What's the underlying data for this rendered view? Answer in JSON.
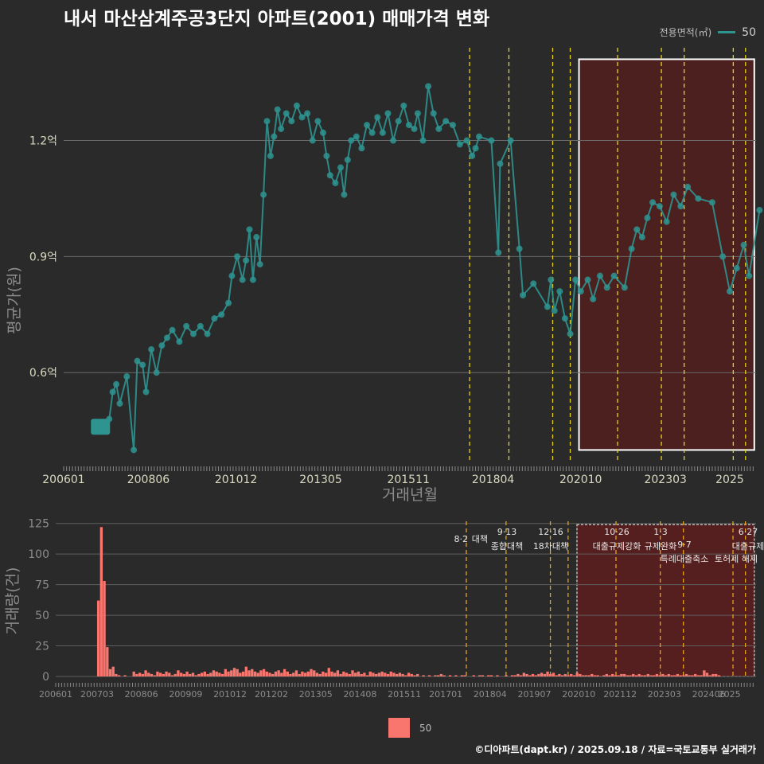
{
  "title": "내서 마산삼계주공3단지 아파트(2001) 매매가격 변화",
  "legend_top": {
    "title": "전용면적(㎡)",
    "value": "50"
  },
  "legend_bottom": {
    "value": "50"
  },
  "caption": "©디아파트(dapt.kr) / 2025.09.18 / 자료=국토교통부 실거래가",
  "colors": {
    "background": "#2a2a2a",
    "price_line": "#2e9490",
    "volume_bar": "#f8766d",
    "policy_line": "#e8d21a",
    "highlight_fill": "#5a1e1e"
  },
  "chart_data": [
    {
      "type": "line",
      "name": "price",
      "x_axis": {
        "label": "거래년월",
        "ticks": [
          "200601",
          "200806",
          "201012",
          "201305",
          "201511",
          "201804",
          "202010",
          "202303",
          "2025"
        ]
      },
      "y_axis": {
        "label": "평균가(원)",
        "ticks": [
          "0.6억",
          "0.9억",
          "1.2억"
        ],
        "ylim": [
          0.37,
          1.45
        ]
      },
      "grid": true,
      "policy_dates": [
        2017.58,
        2018.7,
        2019.95,
        2020.45,
        2021.8,
        2023.05,
        2023.7,
        2025.1,
        2025.45
      ],
      "highlight_range": [
        2020.7,
        2025.7
      ],
      "series": [
        {
          "name": "50",
          "points": [
            [
              2007.05,
              0.46
            ],
            [
              2007.15,
              0.46
            ],
            [
              2007.3,
              0.48
            ],
            [
              2007.4,
              0.55
            ],
            [
              2007.5,
              0.57
            ],
            [
              2007.6,
              0.52
            ],
            [
              2007.8,
              0.59
            ],
            [
              2008.0,
              0.4
            ],
            [
              2008.1,
              0.63
            ],
            [
              2008.25,
              0.62
            ],
            [
              2008.35,
              0.55
            ],
            [
              2008.5,
              0.66
            ],
            [
              2008.65,
              0.6
            ],
            [
              2008.8,
              0.67
            ],
            [
              2008.95,
              0.69
            ],
            [
              2009.1,
              0.71
            ],
            [
              2009.3,
              0.68
            ],
            [
              2009.5,
              0.72
            ],
            [
              2009.7,
              0.7
            ],
            [
              2009.9,
              0.72
            ],
            [
              2010.1,
              0.7
            ],
            [
              2010.3,
              0.74
            ],
            [
              2010.5,
              0.75
            ],
            [
              2010.7,
              0.78
            ],
            [
              2010.8,
              0.85
            ],
            [
              2010.95,
              0.9
            ],
            [
              2011.1,
              0.84
            ],
            [
              2011.2,
              0.89
            ],
            [
              2011.3,
              0.97
            ],
            [
              2011.4,
              0.84
            ],
            [
              2011.5,
              0.95
            ],
            [
              2011.6,
              0.88
            ],
            [
              2011.7,
              1.06
            ],
            [
              2011.8,
              1.25
            ],
            [
              2011.9,
              1.16
            ],
            [
              2012.0,
              1.21
            ],
            [
              2012.1,
              1.28
            ],
            [
              2012.2,
              1.23
            ],
            [
              2012.35,
              1.27
            ],
            [
              2012.5,
              1.25
            ],
            [
              2012.65,
              1.29
            ],
            [
              2012.8,
              1.26
            ],
            [
              2012.95,
              1.27
            ],
            [
              2013.1,
              1.2
            ],
            [
              2013.25,
              1.25
            ],
            [
              2013.4,
              1.22
            ],
            [
              2013.5,
              1.16
            ],
            [
              2013.6,
              1.11
            ],
            [
              2013.75,
              1.09
            ],
            [
              2013.9,
              1.13
            ],
            [
              2014.0,
              1.06
            ],
            [
              2014.1,
              1.15
            ],
            [
              2014.2,
              1.2
            ],
            [
              2014.35,
              1.21
            ],
            [
              2014.5,
              1.18
            ],
            [
              2014.65,
              1.24
            ],
            [
              2014.8,
              1.22
            ],
            [
              2014.95,
              1.26
            ],
            [
              2015.1,
              1.22
            ],
            [
              2015.25,
              1.27
            ],
            [
              2015.4,
              1.2
            ],
            [
              2015.55,
              1.25
            ],
            [
              2015.7,
              1.29
            ],
            [
              2015.85,
              1.24
            ],
            [
              2016.0,
              1.23
            ],
            [
              2016.1,
              1.27
            ],
            [
              2016.25,
              1.2
            ],
            [
              2016.4,
              1.34
            ],
            [
              2016.55,
              1.27
            ],
            [
              2016.7,
              1.23
            ],
            [
              2016.9,
              1.25
            ],
            [
              2017.1,
              1.24
            ],
            [
              2017.3,
              1.19
            ],
            [
              2017.5,
              1.2
            ],
            [
              2017.65,
              1.16
            ],
            [
              2017.75,
              1.18
            ],
            [
              2017.85,
              1.21
            ],
            [
              2018.2,
              1.2
            ],
            [
              2018.4,
              0.91
            ],
            [
              2018.45,
              1.14
            ],
            [
              2018.75,
              1.2
            ],
            [
              2019.0,
              0.92
            ],
            [
              2019.1,
              0.8
            ],
            [
              2019.4,
              0.83
            ],
            [
              2019.8,
              0.77
            ],
            [
              2019.9,
              0.84
            ],
            [
              2020.0,
              0.76
            ],
            [
              2020.15,
              0.81
            ],
            [
              2020.3,
              0.74
            ],
            [
              2020.45,
              0.7
            ],
            [
              2020.6,
              0.84
            ],
            [
              2020.75,
              0.81
            ],
            [
              2020.95,
              0.84
            ],
            [
              2021.1,
              0.79
            ],
            [
              2021.3,
              0.85
            ],
            [
              2021.5,
              0.82
            ],
            [
              2021.7,
              0.85
            ],
            [
              2022.0,
              0.82
            ],
            [
              2022.2,
              0.92
            ],
            [
              2022.35,
              0.97
            ],
            [
              2022.5,
              0.95
            ],
            [
              2022.65,
              1.0
            ],
            [
              2022.8,
              1.04
            ],
            [
              2023.0,
              1.03
            ],
            [
              2023.2,
              0.99
            ],
            [
              2023.4,
              1.06
            ],
            [
              2023.6,
              1.03
            ],
            [
              2023.8,
              1.08
            ],
            [
              2024.1,
              1.05
            ],
            [
              2024.5,
              1.04
            ],
            [
              2024.8,
              0.9
            ],
            [
              2025.0,
              0.81
            ],
            [
              2025.2,
              0.87
            ],
            [
              2025.4,
              0.93
            ],
            [
              2025.55,
              0.85
            ],
            [
              2025.85,
              1.02
            ]
          ]
        }
      ]
    },
    {
      "type": "bar",
      "name": "volume",
      "x_axis": {
        "ticks": [
          "200601",
          "200703",
          "200806",
          "200909",
          "201012",
          "201202",
          "201305",
          "201408",
          "201511",
          "201701",
          "201804",
          "201907",
          "202010",
          "202112",
          "202303",
          "202406",
          "2025"
        ]
      },
      "y_axis": {
        "label": "거래량(건)",
        "ticks": [
          "0",
          "25",
          "50",
          "75",
          "100",
          "125"
        ],
        "ylim": [
          0,
          130
        ]
      },
      "grid": true,
      "annotations": [
        {
          "date": "8·2",
          "label": "대책"
        },
        {
          "date": "9·13",
          "label": "종합대책"
        },
        {
          "date": "12·16",
          "label": "18차대책"
        },
        {
          "date": "10·26",
          "label": "대출규제강화"
        },
        {
          "date": "1·3",
          "label": "규제완화"
        },
        {
          "date": "9·7",
          "label": "특례대출축소"
        },
        {
          "date": "",
          "label": "토허제 해제"
        },
        {
          "date": "6·27",
          "label": "대출규제"
        }
      ],
      "series": [
        {
          "name": "50",
          "monthly_values": [
            0,
            0,
            0,
            0,
            0,
            0,
            0,
            0,
            0,
            0,
            0,
            0,
            0,
            0,
            62,
            122,
            78,
            24,
            6,
            8,
            2,
            1,
            0,
            1,
            0,
            0,
            4,
            2,
            3,
            2,
            5,
            3,
            2,
            1,
            4,
            3,
            2,
            4,
            3,
            1,
            2,
            5,
            3,
            2,
            4,
            2,
            3,
            1,
            2,
            3,
            4,
            2,
            3,
            5,
            4,
            3,
            2,
            6,
            4,
            5,
            7,
            6,
            3,
            4,
            8,
            5,
            6,
            4,
            3,
            5,
            6,
            4,
            3,
            2,
            4,
            5,
            3,
            6,
            4,
            2,
            3,
            5,
            2,
            4,
            3,
            4,
            6,
            5,
            3,
            2,
            4,
            3,
            7,
            4,
            3,
            5,
            2,
            4,
            3,
            2,
            5,
            3,
            4,
            2,
            3,
            1,
            4,
            3,
            2,
            3,
            4,
            3,
            2,
            4,
            3,
            2,
            3,
            2,
            1,
            3,
            2,
            1,
            2,
            0,
            1,
            0,
            1,
            0,
            1,
            1,
            2,
            1,
            0,
            1,
            0,
            1,
            0,
            1,
            1,
            0,
            0,
            1,
            0,
            1,
            1,
            0,
            1,
            1,
            0,
            1,
            0,
            0,
            1,
            0,
            1,
            1,
            2,
            1,
            3,
            2,
            1,
            2,
            1,
            2,
            3,
            2,
            4,
            2,
            3,
            1,
            2,
            1,
            2,
            1,
            2,
            1,
            3,
            2,
            1,
            1,
            1,
            2,
            1,
            1,
            0,
            1,
            2,
            1,
            2,
            1,
            1,
            2,
            2,
            1,
            1,
            2,
            1,
            2,
            1,
            1,
            2,
            1,
            1,
            2,
            1,
            2,
            1,
            2,
            1,
            1,
            2,
            1,
            1,
            2,
            1,
            1,
            2,
            1,
            1,
            5,
            3,
            1,
            2,
            2,
            1
          ]
        }
      ]
    }
  ]
}
